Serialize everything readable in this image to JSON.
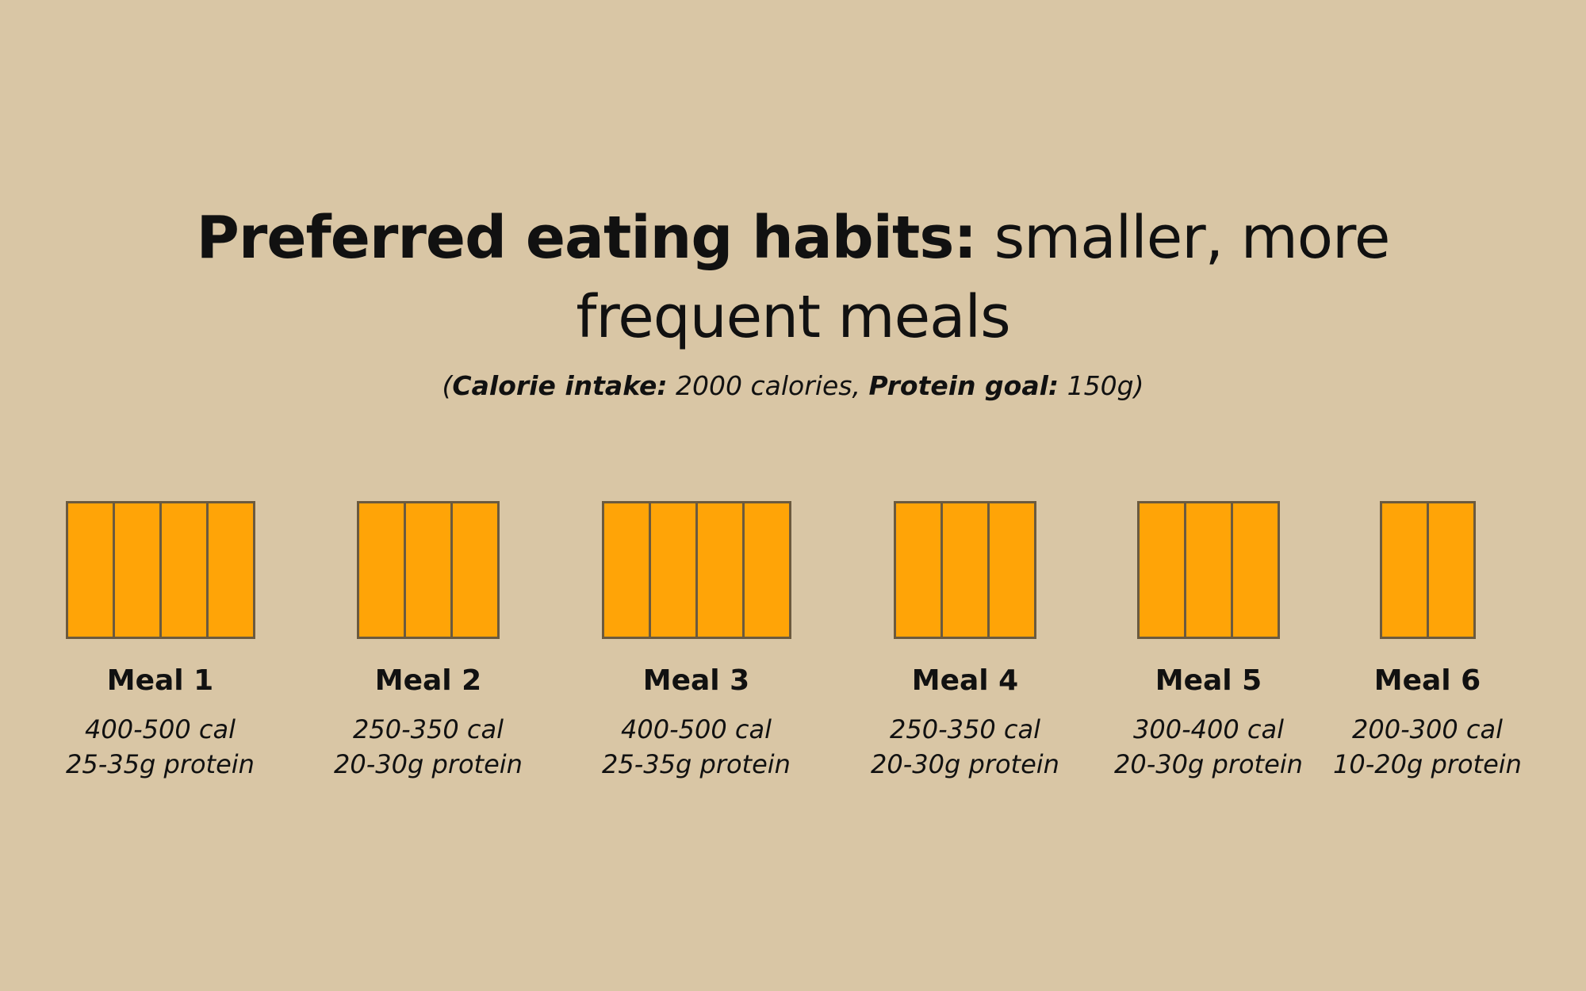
{
  "title": {
    "bold": "Preferred eating habits:",
    "line1_rest": " smaller, more",
    "line2": "frequent meals"
  },
  "subtitle": {
    "open": "(",
    "calorie_label": "Calorie intake",
    "calorie_colon": ":",
    "calorie_value": " 2000 calories, ",
    "protein_label": "Protein goal",
    "protein_colon": ":",
    "protein_value": " 150g",
    "close": ")"
  },
  "colors": {
    "background": "#d9c6a5",
    "bar_fill": "#ffa407",
    "bar_border": "#6b5a3f"
  },
  "meals": [
    {
      "name": "Meal 1",
      "calories": "400-500 cal",
      "protein": "25-35g protein",
      "portions": 4
    },
    {
      "name": "Meal 2",
      "calories": "250-350 cal",
      "protein": "20-30g protein",
      "portions": 3
    },
    {
      "name": "Meal 3",
      "calories": "400-500 cal",
      "protein": "25-35g protein",
      "portions": 4
    },
    {
      "name": "Meal 4",
      "calories": "250-350 cal",
      "protein": "20-30g protein",
      "portions": 3
    },
    {
      "name": "Meal 5",
      "calories": "300-400 cal",
      "protein": "20-30g protein",
      "portions": 3
    },
    {
      "name": "Meal 6",
      "calories": "200-300 cal",
      "protein": "10-20g protein",
      "portions": 2
    }
  ]
}
